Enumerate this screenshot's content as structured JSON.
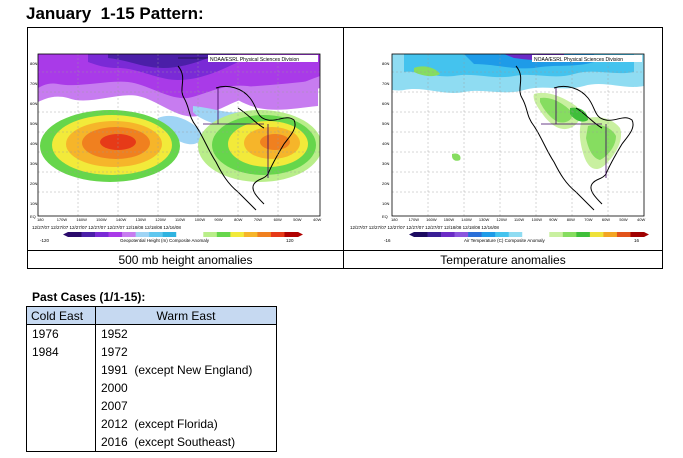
{
  "page": {
    "title": "January  1-15 Pattern:"
  },
  "maps": {
    "left": {
      "source_label": "NOAA/ESRL Physical Sciences Division",
      "caption": "500 mb height anomalies",
      "footer_dates": "12/27/07 12/27/07 12/27/07 12/27/07 12/27/07 12/18/08 12/18/08 12/16/08",
      "footer_label": "Geopotential Height (m) Composite Anomaly",
      "colorbar_min": "-120",
      "colorbar_max": "120"
    },
    "right": {
      "source_label": "NOAA/ESRL Physical Sciences Division",
      "caption": "Temperature anomalies",
      "footer_dates": "12/27/07 12/27/07 12/27/07 12/27/07 12/27/07 12/18/08 12/18/08 12/16/08",
      "footer_label": "Air Temperature (C) Composite Anomaly",
      "colorbar_min": "-16",
      "colorbar_max": "16"
    },
    "lat_labels": [
      "80N",
      "70N",
      "60N",
      "50N",
      "40N",
      "30N",
      "20N",
      "10N",
      "EQ"
    ],
    "lon_labels": [
      "180",
      "170W",
      "160W",
      "150W",
      "140W",
      "130W",
      "120W",
      "110W",
      "100W",
      "90W",
      "80W",
      "70W",
      "60W",
      "50W",
      "40W"
    ]
  },
  "past_cases": {
    "title": "Past Cases (1/1-15):",
    "headers": {
      "cold": "Cold East",
      "warm": "Warm East"
    },
    "rows": [
      {
        "cold": "1976",
        "warm": "1952"
      },
      {
        "cold": "1984",
        "warm": "1972"
      },
      {
        "cold": "",
        "warm": "1991  (except New England)"
      },
      {
        "cold": "",
        "warm": "2000"
      },
      {
        "cold": "",
        "warm": "2007"
      },
      {
        "cold": "",
        "warm": "2012  (except Florida)"
      },
      {
        "cold": "",
        "warm": "2016  (except Southeast)"
      }
    ]
  },
  "colors": {
    "height_scale": [
      "#2a0a6b",
      "#4b1fa8",
      "#7a2ad6",
      "#a93ae8",
      "#c77cf0",
      "#9fd4f5",
      "#5fc7ef",
      "#2fb3e0",
      "#ffffff",
      "#ffffff",
      "#b9ee8a",
      "#66d64b",
      "#f2ea3a",
      "#f6b52a",
      "#f0801f",
      "#e63a18",
      "#b00000"
    ],
    "temp_scale": [
      "#1b0a60",
      "#3a1f95",
      "#6b2bc6",
      "#8c55de",
      "#2a6fd8",
      "#1e9be8",
      "#44c3ee",
      "#8fdcf2",
      "#ffffff",
      "#ffffff",
      "#c9f0a0",
      "#86dd60",
      "#3fbf3a",
      "#eee23a",
      "#f3a523",
      "#e2531a",
      "#a00000"
    ]
  }
}
